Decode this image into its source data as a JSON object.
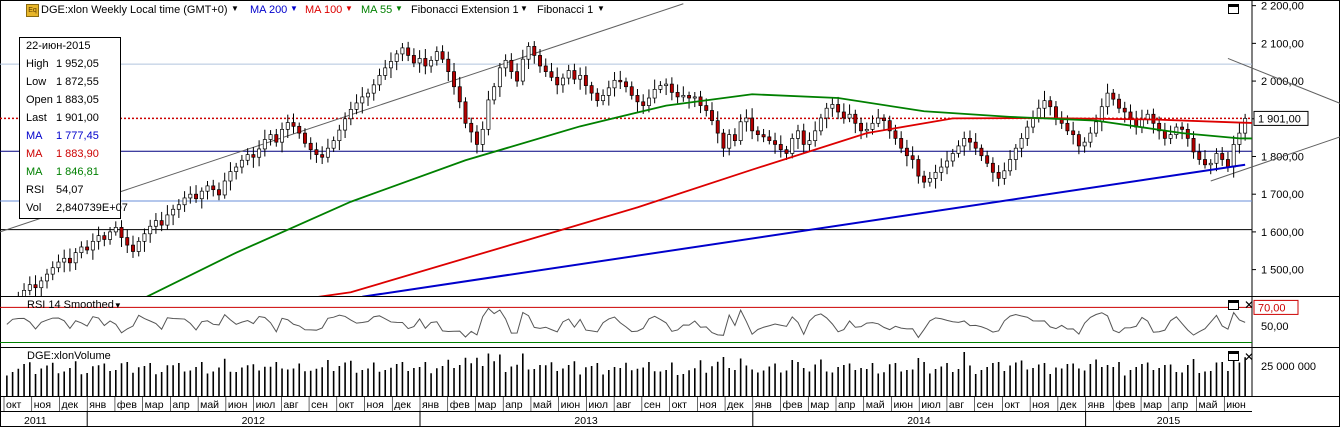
{
  "header": {
    "symbol": "DGE:xlon Weekly Local time (GMT+0)",
    "ma200": "MA 200",
    "ma100": "MA 100",
    "ma55": "MA 55",
    "fibext": "Fibonacci Extension 1",
    "fib": "Fibonacci 1"
  },
  "infobox": {
    "date": "22-июн-2015",
    "rows": [
      {
        "label": "High",
        "value": "1 952,05",
        "color": "#000000"
      },
      {
        "label": "Low",
        "value": "1 872,55",
        "color": "#000000"
      },
      {
        "label": "Open",
        "value": "1 883,05",
        "color": "#000000"
      },
      {
        "label": "Last",
        "value": "1 901,00",
        "color": "#000000"
      },
      {
        "label": "MA",
        "value": "1 777,45",
        "color": "#0000cc"
      },
      {
        "label": "MA",
        "value": "1 883,90",
        "color": "#cc0000"
      },
      {
        "label": "MA",
        "value": "1 846,81",
        "color": "#008000"
      },
      {
        "label": "RSI",
        "value": "54,07",
        "color": "#000000"
      },
      {
        "label": "Vol",
        "value": "2,840739E+07",
        "color": "#000000"
      }
    ]
  },
  "rsi_panel": {
    "title": "RSI 14 Smoothed",
    "level_label": "70,00",
    "tick_50": "50,00"
  },
  "volume_panel": {
    "title": "DGE:xlonVolume",
    "tick": "25 000 000"
  },
  "last_price_label": "1 901,00",
  "colors": {
    "up": "#ffffff",
    "down": "#b40000",
    "ma200": "#0000cc",
    "ma100": "#dd0000",
    "ma55": "#008000",
    "grid": "#b8cce0",
    "fib": "#606060"
  },
  "chart_data": {
    "type": "candlestick",
    "period": "weekly",
    "price_axis": {
      "ylim": [
        1430,
        2215
      ],
      "ticks": [
        "1 500,00",
        "1 600,00",
        "1 700,00",
        "1 800,00",
        "1 900,00",
        "2 000,00",
        "2 100,00",
        "2 200,00"
      ],
      "tick_values": [
        1500,
        1600,
        1700,
        1800,
        1900,
        2000,
        2100,
        2200
      ]
    },
    "horizontal_lines": [
      {
        "value": 1901,
        "style": "dotted",
        "color": "#cc0000"
      },
      {
        "value": 1814,
        "style": "solid",
        "color": "#000080"
      },
      {
        "value": 1606,
        "style": "solid",
        "color": "#000000"
      },
      {
        "value": 1682,
        "style": "solid",
        "color": "#6a8fd8"
      },
      {
        "value": 2045,
        "style": "solid",
        "color": "#b0c4de"
      }
    ],
    "months": [
      "окт",
      "ноя",
      "дек",
      "янв",
      "фев",
      "мар",
      "апр",
      "май",
      "июн",
      "июл",
      "авг",
      "сен",
      "окт",
      "ноя",
      "дек",
      "янв",
      "фев",
      "мар",
      "апр",
      "май",
      "июн",
      "июл",
      "авг",
      "сен",
      "окт",
      "ноя",
      "дек",
      "янв",
      "фев",
      "мар",
      "апр",
      "май",
      "июн",
      "июл",
      "авг",
      "сен",
      "окт",
      "ноя",
      "дек",
      "янв",
      "фев",
      "мар",
      "апр",
      "май",
      "июн"
    ],
    "years": [
      "2011",
      "2012",
      "2013",
      "2014",
      "2015"
    ],
    "closes": [
      1400,
      1412,
      1425,
      1445,
      1460,
      1452,
      1470,
      1488,
      1505,
      1520,
      1530,
      1518,
      1545,
      1560,
      1552,
      1575,
      1590,
      1580,
      1600,
      1612,
      1585,
      1565,
      1548,
      1575,
      1595,
      1615,
      1630,
      1618,
      1645,
      1660,
      1672,
      1690,
      1700,
      1688,
      1708,
      1722,
      1712,
      1698,
      1735,
      1760,
      1772,
      1790,
      1805,
      1798,
      1820,
      1845,
      1858,
      1838,
      1872,
      1890,
      1880,
      1862,
      1835,
      1818,
      1805,
      1798,
      1822,
      1842,
      1870,
      1900,
      1925,
      1942,
      1958,
      1968,
      1990,
      2015,
      2035,
      2052,
      2072,
      2088,
      2068,
      2048,
      2060,
      2040,
      2055,
      2078,
      2058,
      2025,
      1985,
      1945,
      1888,
      1865,
      1832,
      1872,
      1950,
      1985,
      2035,
      2055,
      2025,
      2000,
      2058,
      2092,
      2068,
      2040,
      2025,
      2010,
      1990,
      2008,
      2028,
      2005,
      2015,
      1988,
      1968,
      1948,
      1962,
      1982,
      2002,
      1998,
      1985,
      1962,
      1945,
      1935,
      1955,
      1978,
      1988,
      1992,
      1970,
      1958,
      1962,
      1955,
      1958,
      1935,
      1922,
      1895,
      1862,
      1822,
      1858,
      1842,
      1892,
      1902,
      1868,
      1858,
      1852,
      1842,
      1832,
      1818,
      1808,
      1848,
      1868,
      1832,
      1842,
      1868,
      1902,
      1928,
      1938,
      1918,
      1902,
      1912,
      1888,
      1868,
      1872,
      1888,
      1902,
      1895,
      1868,
      1848,
      1822,
      1802,
      1792,
      1748,
      1732,
      1742,
      1758,
      1772,
      1788,
      1808,
      1828,
      1848,
      1838,
      1822,
      1802,
      1782,
      1758,
      1742,
      1762,
      1792,
      1822,
      1848,
      1878,
      1902,
      1928,
      1948,
      1932,
      1902,
      1888,
      1868,
      1858,
      1828,
      1838,
      1862,
      1892,
      1932,
      1968,
      1952,
      1928,
      1918,
      1898,
      1878,
      1898,
      1912,
      1888,
      1868,
      1848,
      1858,
      1878,
      1872,
      1848,
      1812,
      1792,
      1778,
      1782,
      1808,
      1792,
      1772,
      1832,
      1862,
      1901
    ],
    "ma200": {
      "start_index": 62,
      "values": [
        1428,
        1778
      ]
    },
    "ma100": {
      "points": [
        [
          37,
          1390
        ],
        [
          60,
          1440
        ],
        [
          90,
          1575
        ],
        [
          110,
          1665
        ],
        [
          130,
          1765
        ],
        [
          150,
          1862
        ],
        [
          165,
          1901
        ],
        [
          180,
          1902
        ],
        [
          200,
          1898
        ],
        [
          215,
          1890
        ],
        [
          227,
          1884
        ]
      ]
    },
    "ma55": {
      "points": [
        [
          20,
          1395
        ],
        [
          40,
          1545
        ],
        [
          60,
          1680
        ],
        [
          80,
          1790
        ],
        [
          100,
          1880
        ],
        [
          115,
          1935
        ],
        [
          130,
          1965
        ],
        [
          145,
          1955
        ],
        [
          160,
          1920
        ],
        [
          175,
          1905
        ],
        [
          190,
          1895
        ],
        [
          205,
          1862
        ],
        [
          215,
          1848
        ],
        [
          227,
          1847
        ]
      ]
    },
    "rsi": {
      "ylim": [
        30,
        80
      ],
      "overbought": 70,
      "last": 54.07
    },
    "volume": {
      "max_label": 25000000
    }
  }
}
